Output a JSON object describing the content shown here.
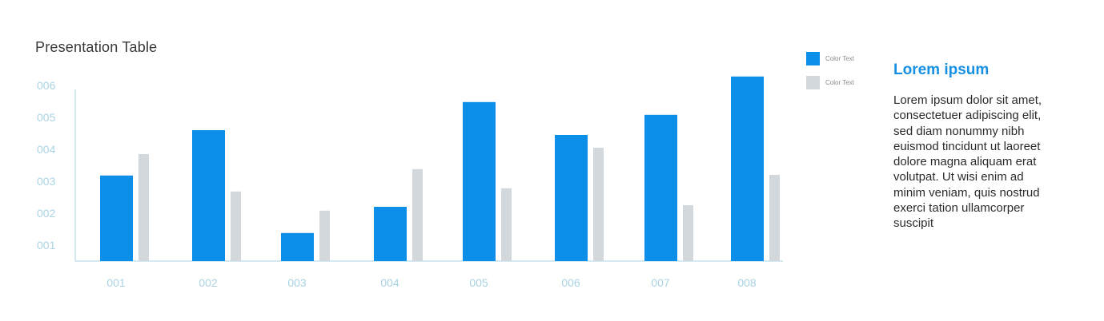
{
  "title": "Presentation Table",
  "legend": [
    {
      "label": "Color Text",
      "color": "#0b8fe8"
    },
    {
      "label": "Color Text",
      "color": "#d3d8dc"
    }
  ],
  "side": {
    "heading": "Lorem ipsum",
    "body": "Lorem ipsum dolor sit amet, consectetuer adipiscing elit, sed diam nonummy nibh euismod tincidunt ut laoreet dolore magna aliquam erat volutpat. Ut wisi enim ad minim veniam, quis nostrud exerci tation ullamcorper suscipit"
  },
  "chart_data": {
    "type": "bar",
    "title": "Presentation Table",
    "categories": [
      "001",
      "002",
      "003",
      "004",
      "005",
      "006",
      "007",
      "008"
    ],
    "y_tick_labels": [
      "001",
      "002",
      "003",
      "004",
      "005",
      "006"
    ],
    "ylim": [
      0.5,
      6.5
    ],
    "series": [
      {
        "color": "#0b8fe8",
        "values": [
          3.18,
          4.6,
          1.38,
          2.2,
          5.48,
          4.45,
          5.08,
          6.28
        ]
      },
      {
        "color": "#d3d8dc",
        "values": [
          3.85,
          2.68,
          2.08,
          3.38,
          2.78,
          4.05,
          2.25,
          3.2
        ]
      }
    ],
    "grid": false,
    "legend_position": "top-right"
  }
}
